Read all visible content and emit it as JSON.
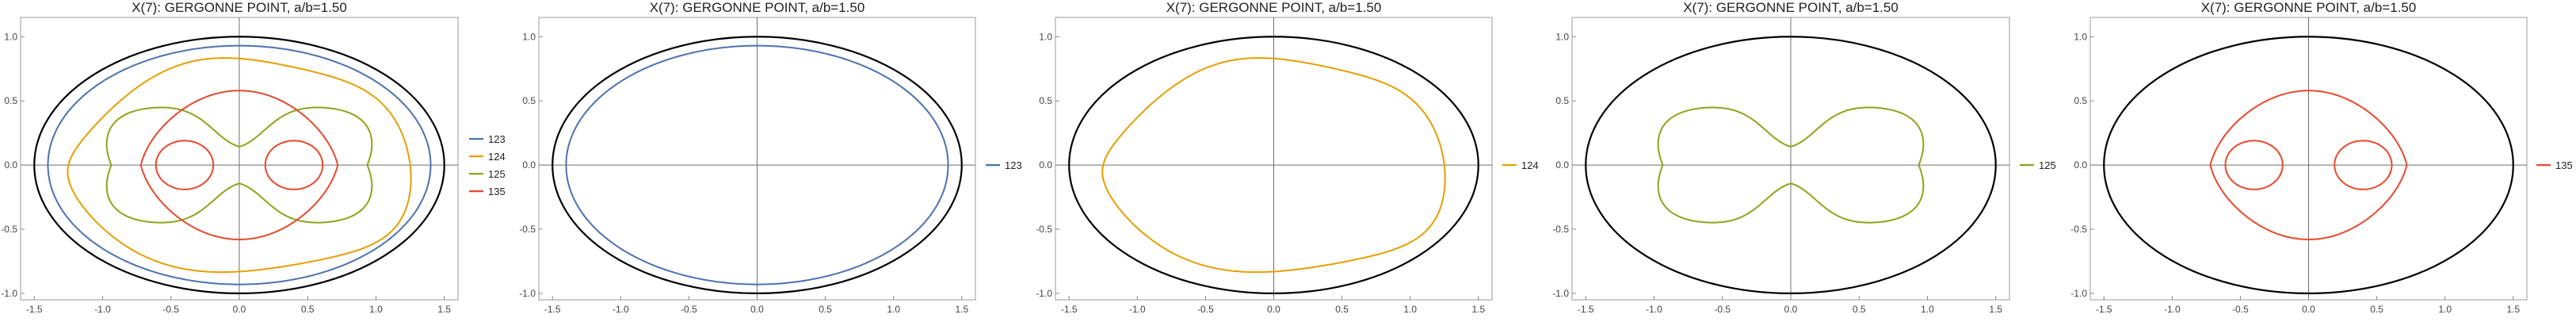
{
  "chart_data": [
    {
      "type": "line",
      "title": "X(7): GERGONNE POINT, a/b=1.50",
      "xlim": [
        -1.6,
        1.6
      ],
      "ylim": [
        -1.05,
        1.15
      ],
      "xticks": [
        "-1.5",
        "-1.0",
        "-0.5",
        "0.0",
        "0.5",
        "1.0",
        "1.5"
      ],
      "yticks": [
        "-1.0",
        "-0.5",
        "0.0",
        "0.5",
        "1.0"
      ],
      "boundary": {
        "shape": "ellipse",
        "a": 1.5,
        "b": 1.0,
        "color": "#000000"
      },
      "legend_position": "right",
      "series": [
        {
          "name": "123",
          "color": "#4c72b0",
          "curve": "ellipse",
          "a": 1.4,
          "b": 0.93
        },
        {
          "name": "124",
          "color": "#e69f00",
          "curve": "skewed-loop",
          "center": [
            0.0,
            0.0
          ],
          "extent": [
            1.25,
            0.83
          ]
        },
        {
          "name": "125",
          "color": "#8ba61b",
          "curve": "cardioid-pair",
          "center": [
            0.0,
            0.0
          ],
          "extent": [
            1.2,
            0.67
          ],
          "cusps_y": [
            0.42,
            -0.42
          ]
        },
        {
          "name": "135",
          "color": "#e8492d",
          "curve": "limacon-pair",
          "center": [
            0.0,
            0.0
          ],
          "extent": [
            0.72,
            0.58
          ],
          "inner_loops": [
            [
              -0.4,
              0.0
            ],
            [
              0.4,
              0.0
            ]
          ]
        }
      ]
    },
    {
      "type": "line",
      "title": "X(7): GERGONNE POINT, a/b=1.50",
      "xlim": [
        -1.6,
        1.6
      ],
      "ylim": [
        -1.05,
        1.15
      ],
      "xticks": [
        "-1.5",
        "-1.0",
        "-0.5",
        "0.0",
        "0.5",
        "1.0",
        "1.5"
      ],
      "yticks": [
        "-1.0",
        "-0.5",
        "0.0",
        "0.5",
        "1.0"
      ],
      "boundary": {
        "shape": "ellipse",
        "a": 1.5,
        "b": 1.0,
        "color": "#000000"
      },
      "legend_position": "right",
      "series": [
        {
          "name": "123",
          "color": "#4c72b0",
          "curve": "ellipse",
          "a": 1.4,
          "b": 0.93
        }
      ]
    },
    {
      "type": "line",
      "title": "X(7): GERGONNE POINT, a/b=1.50",
      "xlim": [
        -1.6,
        1.6
      ],
      "ylim": [
        -1.05,
        1.15
      ],
      "xticks": [
        "-1.5",
        "-1.0",
        "-0.5",
        "0.0",
        "0.5",
        "1.0",
        "1.5"
      ],
      "yticks": [
        "-1.0",
        "-0.5",
        "0.0",
        "0.5",
        "1.0"
      ],
      "boundary": {
        "shape": "ellipse",
        "a": 1.5,
        "b": 1.0,
        "color": "#000000"
      },
      "legend_position": "right",
      "series": [
        {
          "name": "124",
          "color": "#e69f00",
          "curve": "skewed-loop",
          "center": [
            0.0,
            0.0
          ],
          "extent": [
            1.25,
            0.83
          ]
        }
      ]
    },
    {
      "type": "line",
      "title": "X(7): GERGONNE POINT, a/b=1.50",
      "xlim": [
        -1.6,
        1.6
      ],
      "ylim": [
        -1.05,
        1.15
      ],
      "xticks": [
        "-1.5",
        "-1.0",
        "-0.5",
        "0.0",
        "0.5",
        "1.0",
        "1.5"
      ],
      "yticks": [
        "-1.0",
        "-0.5",
        "0.0",
        "0.5",
        "1.0"
      ],
      "boundary": {
        "shape": "ellipse",
        "a": 1.5,
        "b": 1.0,
        "color": "#000000"
      },
      "legend_position": "right",
      "series": [
        {
          "name": "125",
          "color": "#8ba61b",
          "curve": "cardioid-pair",
          "center": [
            0.0,
            0.0
          ],
          "extent": [
            1.2,
            0.67
          ],
          "cusps_y": [
            0.42,
            -0.42
          ]
        }
      ]
    },
    {
      "type": "line",
      "title": "X(7): GERGONNE POINT, a/b=1.50",
      "xlim": [
        -1.6,
        1.6
      ],
      "ylim": [
        -1.05,
        1.15
      ],
      "xticks": [
        "-1.5",
        "-1.0",
        "-0.5",
        "0.0",
        "0.5",
        "1.0",
        "1.5"
      ],
      "yticks": [
        "-1.0",
        "-0.5",
        "0.0",
        "0.5",
        "1.0"
      ],
      "boundary": {
        "shape": "ellipse",
        "a": 1.5,
        "b": 1.0,
        "color": "#000000"
      },
      "legend_position": "right",
      "series": [
        {
          "name": "135",
          "color": "#e8492d",
          "curve": "limacon-pair",
          "center": [
            0.0,
            0.0
          ],
          "extent": [
            0.72,
            0.58
          ],
          "inner_loops": [
            [
              -0.4,
              0.0
            ],
            [
              0.4,
              0.0
            ]
          ]
        }
      ]
    }
  ]
}
